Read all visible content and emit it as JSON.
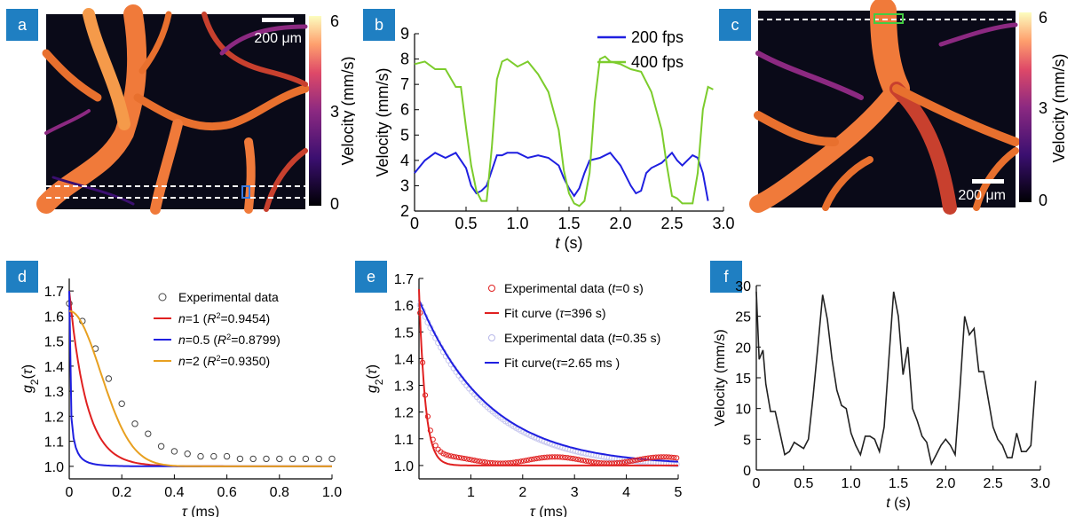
{
  "panel_labels": {
    "a": "a",
    "b": "b",
    "c": "c",
    "d": "d",
    "e": "e",
    "f": "f"
  },
  "colors": {
    "label_bg": "#1f7fc2",
    "blue": "#1f1fe0",
    "green": "#7ccc2c",
    "red": "#e02020",
    "orange": "#e8a020",
    "black": "#222222"
  },
  "panel_a": {
    "scale_bar": "200 μm",
    "colorbar": {
      "label": "Velocity (mm/s)",
      "ticks": [
        "6",
        "3",
        "0"
      ]
    }
  },
  "panel_c": {
    "scale_bar": "200 μm",
    "colorbar": {
      "label": "Velocity (mm/s)",
      "ticks": [
        "6",
        "3",
        "0"
      ]
    }
  },
  "chart_data": [
    {
      "panel": "b",
      "type": "line",
      "xlabel": "t (s)",
      "ylabel": "Velocity (mm/s)",
      "xlim": [
        0,
        3.0
      ],
      "ylim": [
        2,
        9
      ],
      "xticks": [
        "0",
        "0.5",
        "1.0",
        "1.5",
        "2.0",
        "2.5",
        "3.0"
      ],
      "yticks": [
        "2",
        "3",
        "4",
        "5",
        "6",
        "7",
        "8",
        "9"
      ],
      "legend": "top-right",
      "series": [
        {
          "name": "200 fps",
          "color": "#1f1fe0",
          "x": [
            0,
            0.1,
            0.2,
            0.3,
            0.4,
            0.5,
            0.55,
            0.6,
            0.65,
            0.7,
            0.75,
            0.8,
            0.85,
            0.9,
            1.0,
            1.1,
            1.2,
            1.3,
            1.4,
            1.45,
            1.5,
            1.55,
            1.6,
            1.65,
            1.7,
            1.8,
            1.9,
            2.0,
            2.1,
            2.15,
            2.2,
            2.25,
            2.3,
            2.4,
            2.5,
            2.55,
            2.6,
            2.7,
            2.75,
            2.8,
            2.85
          ],
          "y": [
            3.5,
            4.0,
            4.3,
            4.1,
            4.3,
            3.7,
            3.0,
            2.7,
            2.8,
            3.0,
            3.6,
            4.2,
            4.2,
            4.3,
            4.3,
            4.1,
            4.2,
            4.1,
            3.8,
            3.3,
            2.9,
            2.6,
            2.9,
            3.5,
            4.0,
            4.1,
            4.3,
            3.8,
            3.0,
            2.7,
            2.8,
            3.5,
            3.7,
            3.9,
            4.3,
            4.0,
            3.8,
            4.2,
            4.1,
            3.5,
            2.4
          ]
        },
        {
          "name": "400 fps",
          "color": "#7ccc2c",
          "x": [
            0,
            0.1,
            0.2,
            0.3,
            0.4,
            0.45,
            0.5,
            0.55,
            0.6,
            0.65,
            0.7,
            0.75,
            0.8,
            0.85,
            0.9,
            1.0,
            1.1,
            1.2,
            1.3,
            1.4,
            1.45,
            1.5,
            1.55,
            1.6,
            1.65,
            1.7,
            1.75,
            1.8,
            1.85,
            1.9,
            2.0,
            2.1,
            2.2,
            2.3,
            2.4,
            2.45,
            2.5,
            2.55,
            2.6,
            2.7,
            2.75,
            2.8,
            2.85,
            2.9
          ],
          "y": [
            7.8,
            7.9,
            7.6,
            7.6,
            6.9,
            6.9,
            5.3,
            3.8,
            2.8,
            2.4,
            2.4,
            4.5,
            7.2,
            7.9,
            8.0,
            7.7,
            7.9,
            7.4,
            6.7,
            5.2,
            3.6,
            2.7,
            2.3,
            2.2,
            2.4,
            3.5,
            6.3,
            8.0,
            8.1,
            7.9,
            7.8,
            7.6,
            7.5,
            6.7,
            5.2,
            3.8,
            2.6,
            2.5,
            2.3,
            2.3,
            3.5,
            6.0,
            6.9,
            6.8
          ]
        }
      ]
    },
    {
      "panel": "d",
      "type": "line",
      "xlabel": "τ (ms)",
      "ylabel": "g2(τ)",
      "xlim": [
        0,
        1.0
      ],
      "ylim": [
        0.95,
        1.75
      ],
      "xticks": [
        "0",
        "0.2",
        "0.4",
        "0.6",
        "0.8",
        "1.0"
      ],
      "yticks": [
        "1.0",
        "1.1",
        "1.2",
        "1.3",
        "1.4",
        "1.5",
        "1.6",
        "1.7"
      ],
      "legend": "top-right",
      "series": [
        {
          "name": "Experimental data",
          "color": "#444444",
          "style": "circles",
          "x": [
            0,
            0.05,
            0.1,
            0.15,
            0.2,
            0.25,
            0.3,
            0.35,
            0.4,
            0.45,
            0.5,
            0.55,
            0.6,
            0.65,
            0.7,
            0.75,
            0.8,
            0.85,
            0.9,
            0.95,
            1.0
          ],
          "y": [
            1.65,
            1.58,
            1.47,
            1.35,
            1.25,
            1.17,
            1.13,
            1.08,
            1.06,
            1.05,
            1.04,
            1.04,
            1.04,
            1.03,
            1.03,
            1.03,
            1.03,
            1.03,
            1.03,
            1.03,
            1.03
          ]
        },
        {
          "name": "n=1 (R2=0.9454)",
          "color": "#e02020",
          "k": 7.5,
          "form": "n1"
        },
        {
          "name": "n=0.5 (R2=0.8799)",
          "color": "#1f1fe0",
          "form": "n05"
        },
        {
          "name": "n=2 (R2=0.9350)",
          "color": "#e8a020",
          "form": "n2"
        }
      ]
    },
    {
      "panel": "e",
      "type": "line",
      "xlabel": "τ (ms)",
      "ylabel": "g2(τ)",
      "xlim": [
        0,
        5
      ],
      "ylim": [
        0.95,
        1.7
      ],
      "xticks": [
        "1",
        "2",
        "3",
        "4",
        "5"
      ],
      "yticks": [
        "1.0",
        "1.1",
        "1.2",
        "1.3",
        "1.4",
        "1.5",
        "1.6",
        "1.7"
      ],
      "legend": "top-right",
      "series": [
        {
          "name": "Experimental data (t=0 s)",
          "color": "#e02020",
          "style": "circles"
        },
        {
          "name": "Fit curve (τ=396 s)",
          "color": "#e02020"
        },
        {
          "name": "Experimental data (t=0.35 s)",
          "color": "#b8b8e8",
          "style": "circles"
        },
        {
          "name": "Fit curve(τ=2.65 ms )",
          "color": "#1f1fe0"
        }
      ]
    },
    {
      "panel": "f",
      "type": "line",
      "xlabel": "t (s)",
      "ylabel": "Velocity (mm/s)",
      "xlim": [
        0,
        3.0
      ],
      "ylim": [
        0,
        30
      ],
      "xticks": [
        "0",
        "0.5",
        "1.0",
        "1.5",
        "2.0",
        "2.5",
        "3.0"
      ],
      "yticks": [
        "0",
        "5",
        "10",
        "15",
        "20",
        "25",
        "30"
      ],
      "series": [
        {
          "name": "",
          "color": "#222222",
          "x": [
            0,
            0.03,
            0.07,
            0.1,
            0.15,
            0.2,
            0.25,
            0.3,
            0.35,
            0.4,
            0.45,
            0.5,
            0.55,
            0.6,
            0.65,
            0.7,
            0.75,
            0.8,
            0.85,
            0.9,
            0.95,
            1.0,
            1.05,
            1.1,
            1.15,
            1.2,
            1.25,
            1.3,
            1.35,
            1.4,
            1.45,
            1.5,
            1.55,
            1.6,
            1.65,
            1.7,
            1.75,
            1.8,
            1.85,
            1.9,
            1.95,
            2.0,
            2.05,
            2.1,
            2.15,
            2.2,
            2.25,
            2.3,
            2.35,
            2.4,
            2.45,
            2.5,
            2.55,
            2.6,
            2.65,
            2.7,
            2.75,
            2.8,
            2.85,
            2.9,
            2.95
          ],
          "y": [
            29,
            18,
            19.5,
            14,
            9.5,
            9.5,
            6,
            2.5,
            3,
            4.5,
            4,
            3.5,
            5,
            12,
            20,
            28.5,
            24.5,
            18,
            13,
            10.5,
            10,
            6,
            4,
            2.5,
            5.5,
            5.5,
            5,
            3,
            7,
            18,
            29,
            25,
            15.5,
            20,
            10,
            8,
            5.5,
            4.5,
            1,
            2.5,
            4,
            5,
            4,
            2.5,
            13,
            25,
            22,
            23,
            16,
            16,
            11.5,
            7,
            5,
            4,
            2,
            2,
            6,
            3,
            3,
            4,
            14.5
          ]
        }
      ]
    }
  ]
}
